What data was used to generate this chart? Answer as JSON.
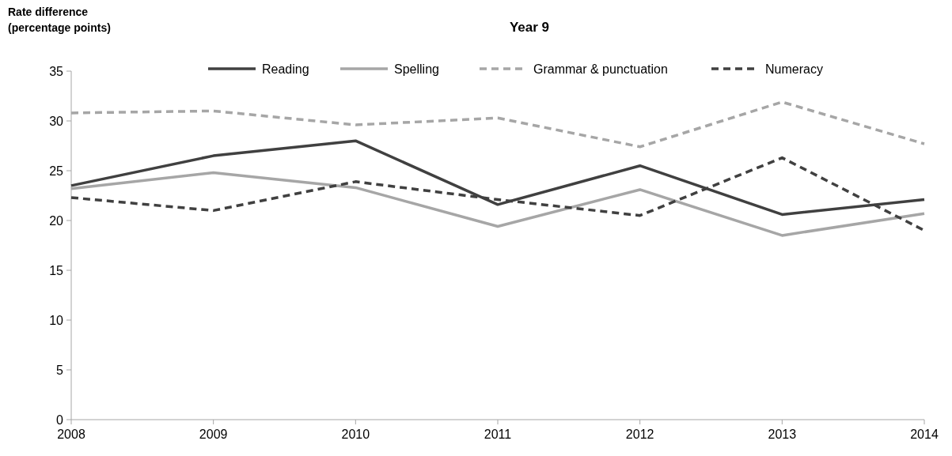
{
  "chart_data": {
    "type": "line",
    "title": "Year 9",
    "ylabel": "Rate difference\n(percentage points)",
    "x": [
      2008,
      2009,
      2010,
      2011,
      2012,
      2013,
      2014
    ],
    "xlim": [
      2008,
      2014
    ],
    "xticks": [
      2008,
      2009,
      2010,
      2011,
      2012,
      2013,
      2014
    ],
    "ylim": [
      0,
      35
    ],
    "yticks": [
      0,
      5,
      10,
      15,
      20,
      25,
      30,
      35
    ],
    "grid": false,
    "legend": "top",
    "marker": "none",
    "series": [
      {
        "name": "Reading",
        "color": "#404040",
        "line_style": "solid",
        "values": [
          23.5,
          26.5,
          28.0,
          21.6,
          25.5,
          20.6,
          22.1
        ]
      },
      {
        "name": "Spelling",
        "color": "#a6a6a6",
        "line_style": "solid",
        "values": [
          23.2,
          24.8,
          23.3,
          19.4,
          23.1,
          18.5,
          20.7
        ]
      },
      {
        "name": "Grammar & punctuation",
        "color": "#a6a6a6",
        "line_style": "dashed",
        "values": [
          30.8,
          31.0,
          29.6,
          30.3,
          27.4,
          31.9,
          27.7
        ]
      },
      {
        "name": "Numeracy",
        "color": "#404040",
        "line_style": "dashed",
        "values": [
          22.3,
          21.0,
          23.9,
          22.1,
          20.5,
          26.3,
          19.0
        ]
      }
    ]
  }
}
